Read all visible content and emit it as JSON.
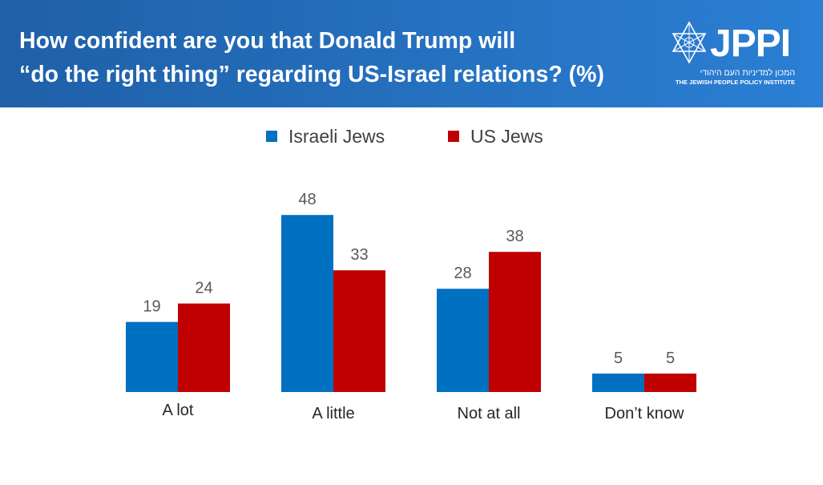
{
  "header": {
    "title_line1": "How confident are you that Donald Trump will",
    "title_line2": "“do the right thing” regarding US-Israel relations? (%)",
    "logo": {
      "wordmark": "JPPI",
      "hebrew": "המכון למדיניות העם היהודי",
      "english": "THE JEWISH PEOPLE POLICY INSTITUTE",
      "icon": "star-of-david-icon"
    }
  },
  "colors": {
    "header_start": "#1f60a8",
    "header_end": "#2b7fd4",
    "israeli_jews": "#0070c0",
    "us_jews": "#c00000"
  },
  "chart_data": {
    "type": "bar",
    "categories": [
      "A lot",
      "A little",
      "Not at all",
      "Don’t know"
    ],
    "series": [
      {
        "name": "Israeli Jews",
        "values": [
          19,
          48,
          28,
          5
        ],
        "color": "#0070c0"
      },
      {
        "name": "US Jews",
        "values": [
          24,
          33,
          38,
          5
        ],
        "color": "#c00000"
      }
    ],
    "title": "How confident are you that Donald Trump will “do the right thing” regarding US-Israel relations? (%)",
    "ylim": [
      0,
      50
    ],
    "grid": false,
    "legend_position": "top-center",
    "data_labels": true
  }
}
